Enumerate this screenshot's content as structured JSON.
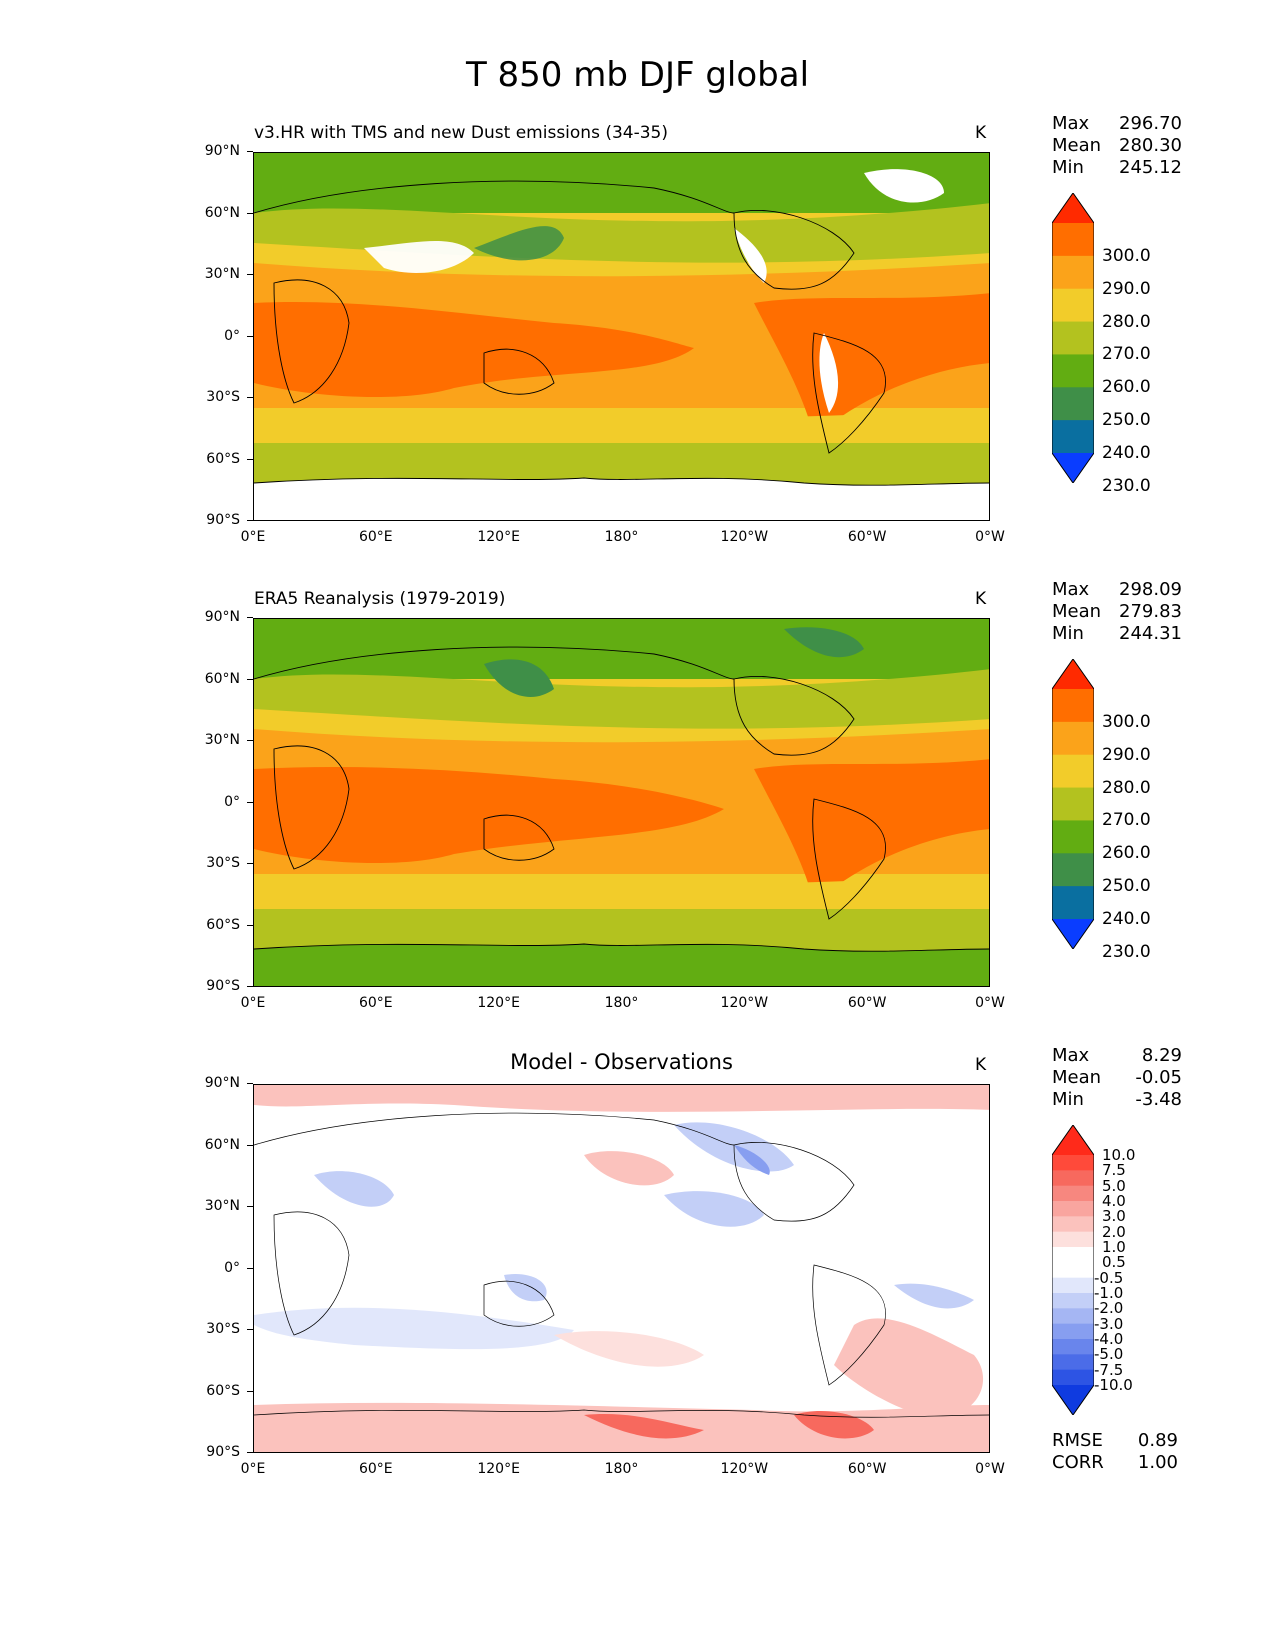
{
  "title": "T 850 mb DJF global",
  "lat_labels": [
    "90°N",
    "60°N",
    "30°N",
    "0°",
    "30°S",
    "60°S",
    "90°S"
  ],
  "lon_labels": [
    "0°E",
    "60°E",
    "120°E",
    "180°",
    "120°W",
    "60°W",
    "0°W"
  ],
  "panels": [
    {
      "label": "v3.HR with TMS and new Dust emissions (34-35)",
      "units": "K",
      "stats": {
        "max_label": "Max",
        "max": "296.70",
        "mean_label": "Mean",
        "mean": "280.30",
        "min_label": "Min",
        "min": "245.12"
      },
      "colorbar_ticks": [
        "300.0",
        "290.0",
        "280.0",
        "270.0",
        "260.0",
        "250.0",
        "240.0",
        "230.0"
      ]
    },
    {
      "label": "ERA5 Reanalysis (1979-2019)",
      "units": "K",
      "stats": {
        "max_label": "Max",
        "max": "298.09",
        "mean_label": "Mean",
        "mean": "279.83",
        "min_label": "Min",
        "min": "244.31"
      },
      "colorbar_ticks": [
        "300.0",
        "290.0",
        "280.0",
        "270.0",
        "260.0",
        "250.0",
        "240.0",
        "230.0"
      ]
    },
    {
      "label": "Model - Observations",
      "units": "K",
      "stats": {
        "max_label": "Max",
        "max": "8.29",
        "mean_label": "Mean",
        "mean": "-0.05",
        "min_label": "Min",
        "min": "-3.48"
      },
      "colorbar_ticks": [
        "10.0",
        "7.5",
        "5.0",
        "4.0",
        "3.0",
        "2.0",
        "1.0",
        "0.5",
        "-0.5",
        "-1.0",
        "-2.0",
        "-3.0",
        "-4.0",
        "-5.0",
        "-7.5",
        "-10.0"
      ],
      "rmse_label": "RMSE",
      "rmse": "0.89",
      "corr_label": "CORR",
      "corr": "1.00"
    }
  ],
  "colors": {
    "abs_scale": [
      "#ff2a00",
      "#ff6e00",
      "#fba31a",
      "#f2cc2a",
      "#b3c21f",
      "#62ad12",
      "#3f8f48",
      "#0a6fa0",
      "#0a3dff"
    ],
    "diff_scale": [
      "#ff2a1a",
      "#ff4a3a",
      "#f7695e",
      "#f7877f",
      "#f9a59f",
      "#fbc2bd",
      "#fde0dd",
      "#ffffff",
      "#ffffff",
      "#e1e7fb",
      "#c3cff7",
      "#a5b6f3",
      "#879ef0",
      "#6985ec",
      "#4b6ce8",
      "#2d54e4",
      "#0f3be0"
    ]
  }
}
